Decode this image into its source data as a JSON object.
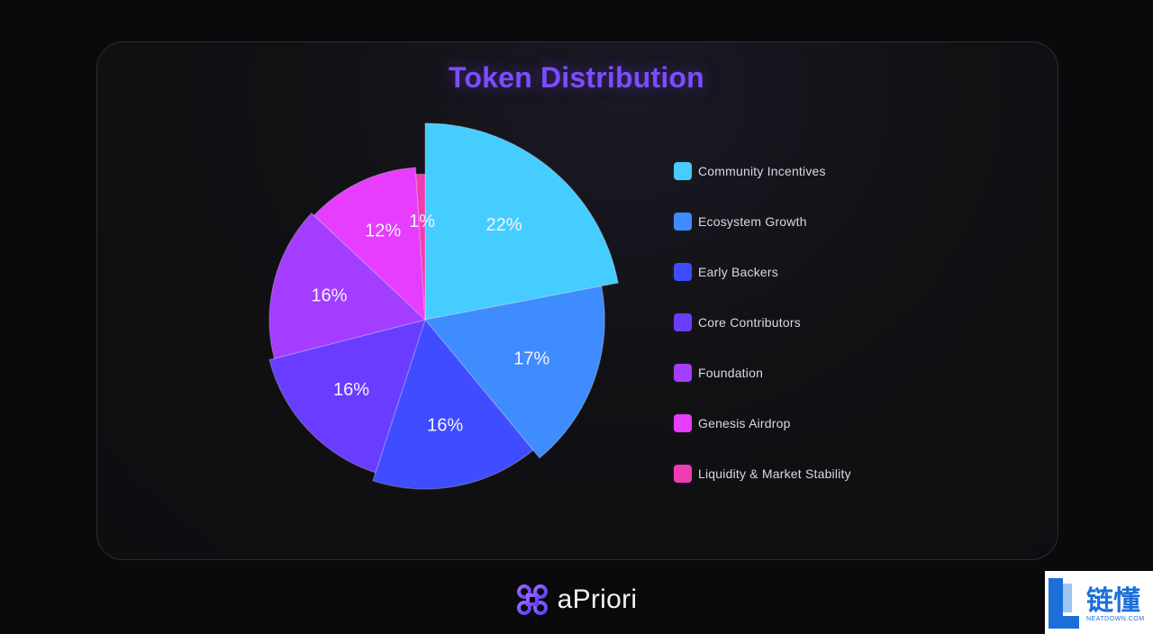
{
  "title": "Token Distribution",
  "brand": {
    "name": "aPriori",
    "logo_icon": "apriori-logo-icon"
  },
  "watermark": {
    "text": "链懂",
    "sub": "NEATDOWN.COM",
    "icon": "neatdown-logo-icon"
  },
  "chart_data": {
    "type": "pie",
    "title": "Token Distribution",
    "legend_position": "right",
    "slices": [
      {
        "name": "Community Incentives",
        "value": 22,
        "label": "22%",
        "color": "#45cdff",
        "explode": 1.16
      },
      {
        "name": "Ecosystem Growth",
        "value": 17,
        "label": "17%",
        "color": "#3f8cff",
        "explode": 1.06
      },
      {
        "name": "Early Backers",
        "value": 16,
        "label": "16%",
        "color": "#3f4cff",
        "explode": 1.0
      },
      {
        "name": "Core Contributors",
        "value": 16,
        "label": "16%",
        "color": "#6a3cff",
        "explode": 0.95
      },
      {
        "name": "Foundation",
        "value": 16,
        "label": "16%",
        "color": "#a33dff",
        "explode": 0.92
      },
      {
        "name": "Genesis Airdrop",
        "value": 12,
        "label": "12%",
        "color": "#e63dff",
        "explode": 0.9
      },
      {
        "name": "Liquidity & Market Stability",
        "value": 1,
        "label": "1%",
        "color": "#f03cb4",
        "explode": 0.86
      }
    ]
  }
}
